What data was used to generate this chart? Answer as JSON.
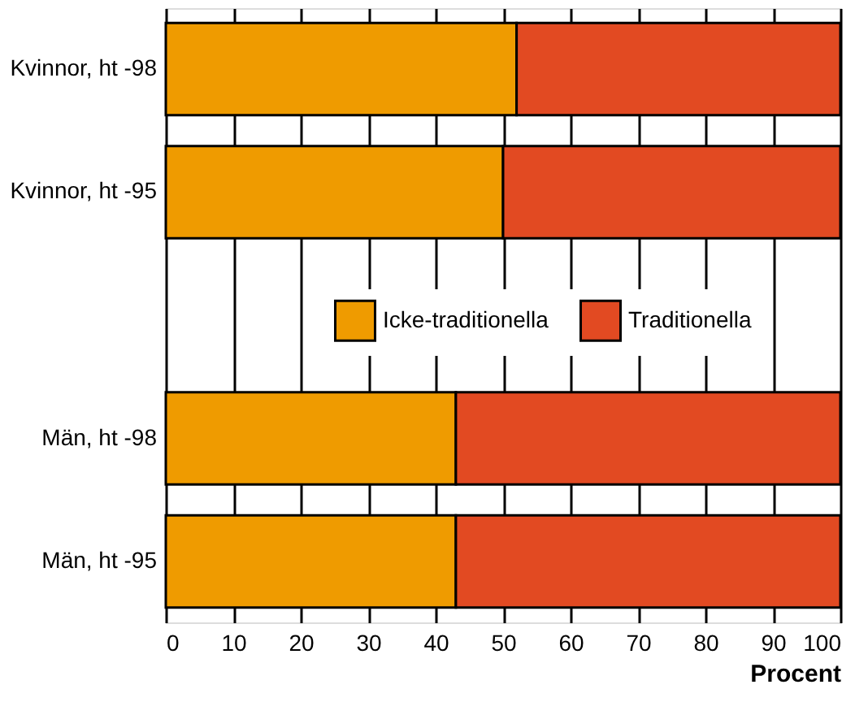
{
  "chart_data": {
    "type": "bar",
    "orientation": "horizontal",
    "stacked": true,
    "categories": [
      "Kvinnor, ht -98",
      "Kvinnor, ht -95",
      null,
      "Män, ht -98",
      "Män, ht -95"
    ],
    "series": [
      {
        "name": "Icke-traditionella",
        "color": "#ef9b00",
        "values": [
          52,
          50,
          null,
          43,
          43
        ]
      },
      {
        "name": "Traditionella",
        "color": "#e24a22",
        "values": [
          48,
          50,
          null,
          57,
          57
        ]
      }
    ],
    "xlabel": "Procent",
    "xlim": [
      0,
      100
    ],
    "xticks": [
      0,
      10,
      20,
      30,
      40,
      50,
      60,
      70,
      80,
      90,
      100
    ],
    "grid": "x",
    "legend": "center"
  }
}
